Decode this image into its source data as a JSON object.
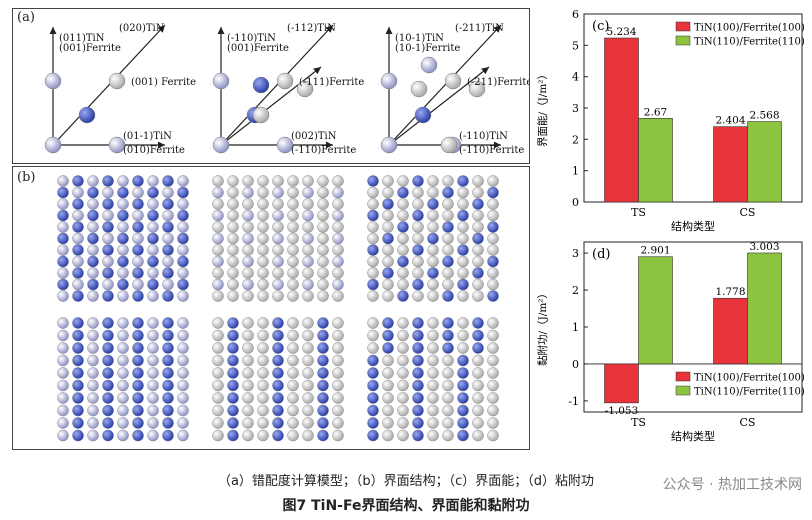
{
  "panel_a": {
    "label": "(a)",
    "cells": [
      {
        "labels": [
          "(011)TiN",
          "(001)Ferrite",
          "(020)TiN",
          "(001) Ferrite",
          "(01-1)TiN",
          "(010)Ferrite"
        ]
      },
      {
        "labels": [
          "(-110)TiN",
          "(001)Ferrite",
          "(-112)TiN",
          "(-111)Ferrite",
          "(002)TiN",
          "(-110)Ferrite"
        ]
      },
      {
        "labels": [
          "(10-1)TiN",
          "(10-1)Ferrite",
          "(-211)TiN",
          "(-211)Ferrite",
          "(-110)TiN",
          "(-110)Ferrite"
        ]
      }
    ]
  },
  "panel_b": {
    "label": "(b)"
  },
  "colors": {
    "tin_red": "#e8333a",
    "ferrite_green": "#8dc43f",
    "atom_blue": "#2b3fa8",
    "atom_gray": "#c9c9c9"
  },
  "chart_data": [
    {
      "type": "bar",
      "panel_label": "(c)",
      "categories": [
        "TS",
        "CS"
      ],
      "xlabel": "结构类型",
      "ylabel": "界面能/（J/m²）",
      "ylim": [
        0,
        6
      ],
      "yticks": [
        "0",
        "1",
        "2",
        "3",
        "4",
        "5",
        "6"
      ],
      "legend_position": "top-right",
      "series": [
        {
          "name": "TiN(100)/Ferrite(100)",
          "values": [
            5.234,
            2.404
          ],
          "labels": [
            "5.234",
            "2.404"
          ],
          "color": "#e8333a"
        },
        {
          "name": "TiN(110)/Ferrite(110)",
          "values": [
            2.67,
            2.568
          ],
          "labels": [
            "2.67",
            "2.568"
          ],
          "color": "#8dc43f"
        }
      ]
    },
    {
      "type": "bar",
      "panel_label": "(d)",
      "categories": [
        "TS",
        "CS"
      ],
      "xlabel": "结构类型",
      "ylabel": "黏附功/（J/m²）",
      "ylim": [
        -1.3,
        3.3
      ],
      "yticks": [
        "-1",
        "0",
        "1",
        "2",
        "3"
      ],
      "legend_position": "bottom-right",
      "series": [
        {
          "name": "TiN(100)/Ferrite(100)",
          "values": [
            -1.053,
            1.778
          ],
          "labels": [
            "-1.053",
            "1.778"
          ],
          "color": "#e8333a"
        },
        {
          "name": "TiN(110)/Ferrite(110)",
          "values": [
            2.901,
            3.003
          ],
          "labels": [
            "2.901",
            "3.003"
          ],
          "color": "#8dc43f"
        }
      ]
    }
  ],
  "caption": {
    "sub": "（a）错配度计算模型；（b）界面结构；（c）界面能；（d）粘附功",
    "main": "图7  TiN-Fe界面结构、界面能和黏附功"
  },
  "watermark": "公众号 · 热加工技术网"
}
